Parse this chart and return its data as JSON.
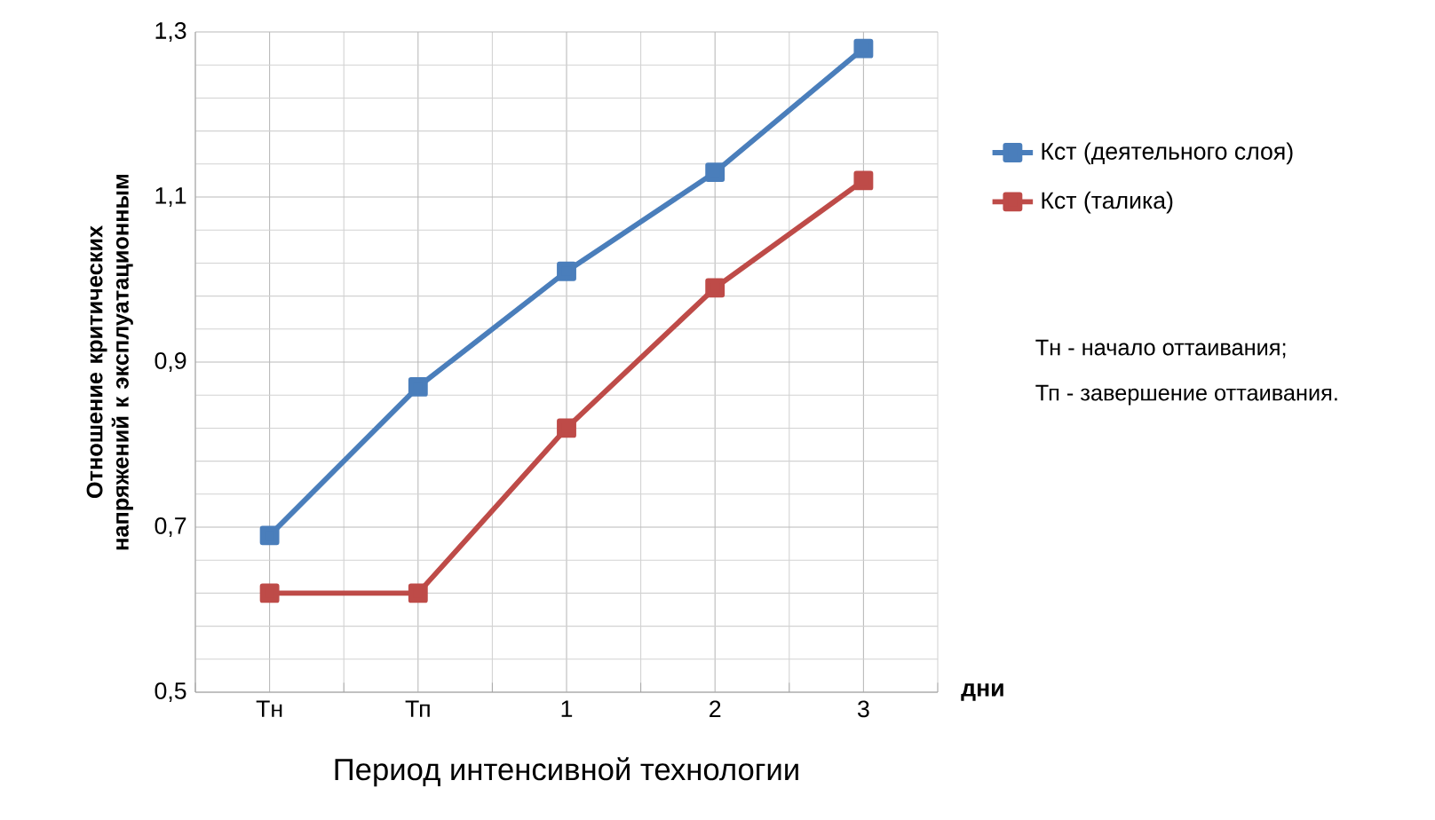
{
  "chart_data": {
    "type": "line",
    "xlabel": "Период интенсивной технологии",
    "ylabel": "Отношение критических напряжений к эксплуатационным",
    "categories": [
      "Тн",
      "Тп",
      "1",
      "2",
      "3"
    ],
    "series": [
      {
        "name": "Кст (деятельного слоя)",
        "color": "#4a7ebb",
        "values": [
          0.69,
          0.87,
          1.01,
          1.13,
          1.28
        ]
      },
      {
        "name": "Кст (талика)",
        "color": "#be4b48",
        "values": [
          0.62,
          0.62,
          0.82,
          0.99,
          1.12
        ]
      }
    ],
    "ylim": [
      0.5,
      1.3
    ],
    "yticks": [
      {
        "value": 0.5,
        "label": "0,5"
      },
      {
        "value": 0.7,
        "label": "0,7"
      },
      {
        "value": 0.9,
        "label": "0,9"
      },
      {
        "value": 1.1,
        "label": "1,1"
      },
      {
        "value": 1.3,
        "label": "1,3"
      }
    ],
    "grid": true,
    "legend": "right",
    "marker": "square",
    "line_style": "solid",
    "annotations": [
      "дни",
      "Тн - начало оттаивания;",
      "Тп - завершение оттаивания."
    ]
  }
}
